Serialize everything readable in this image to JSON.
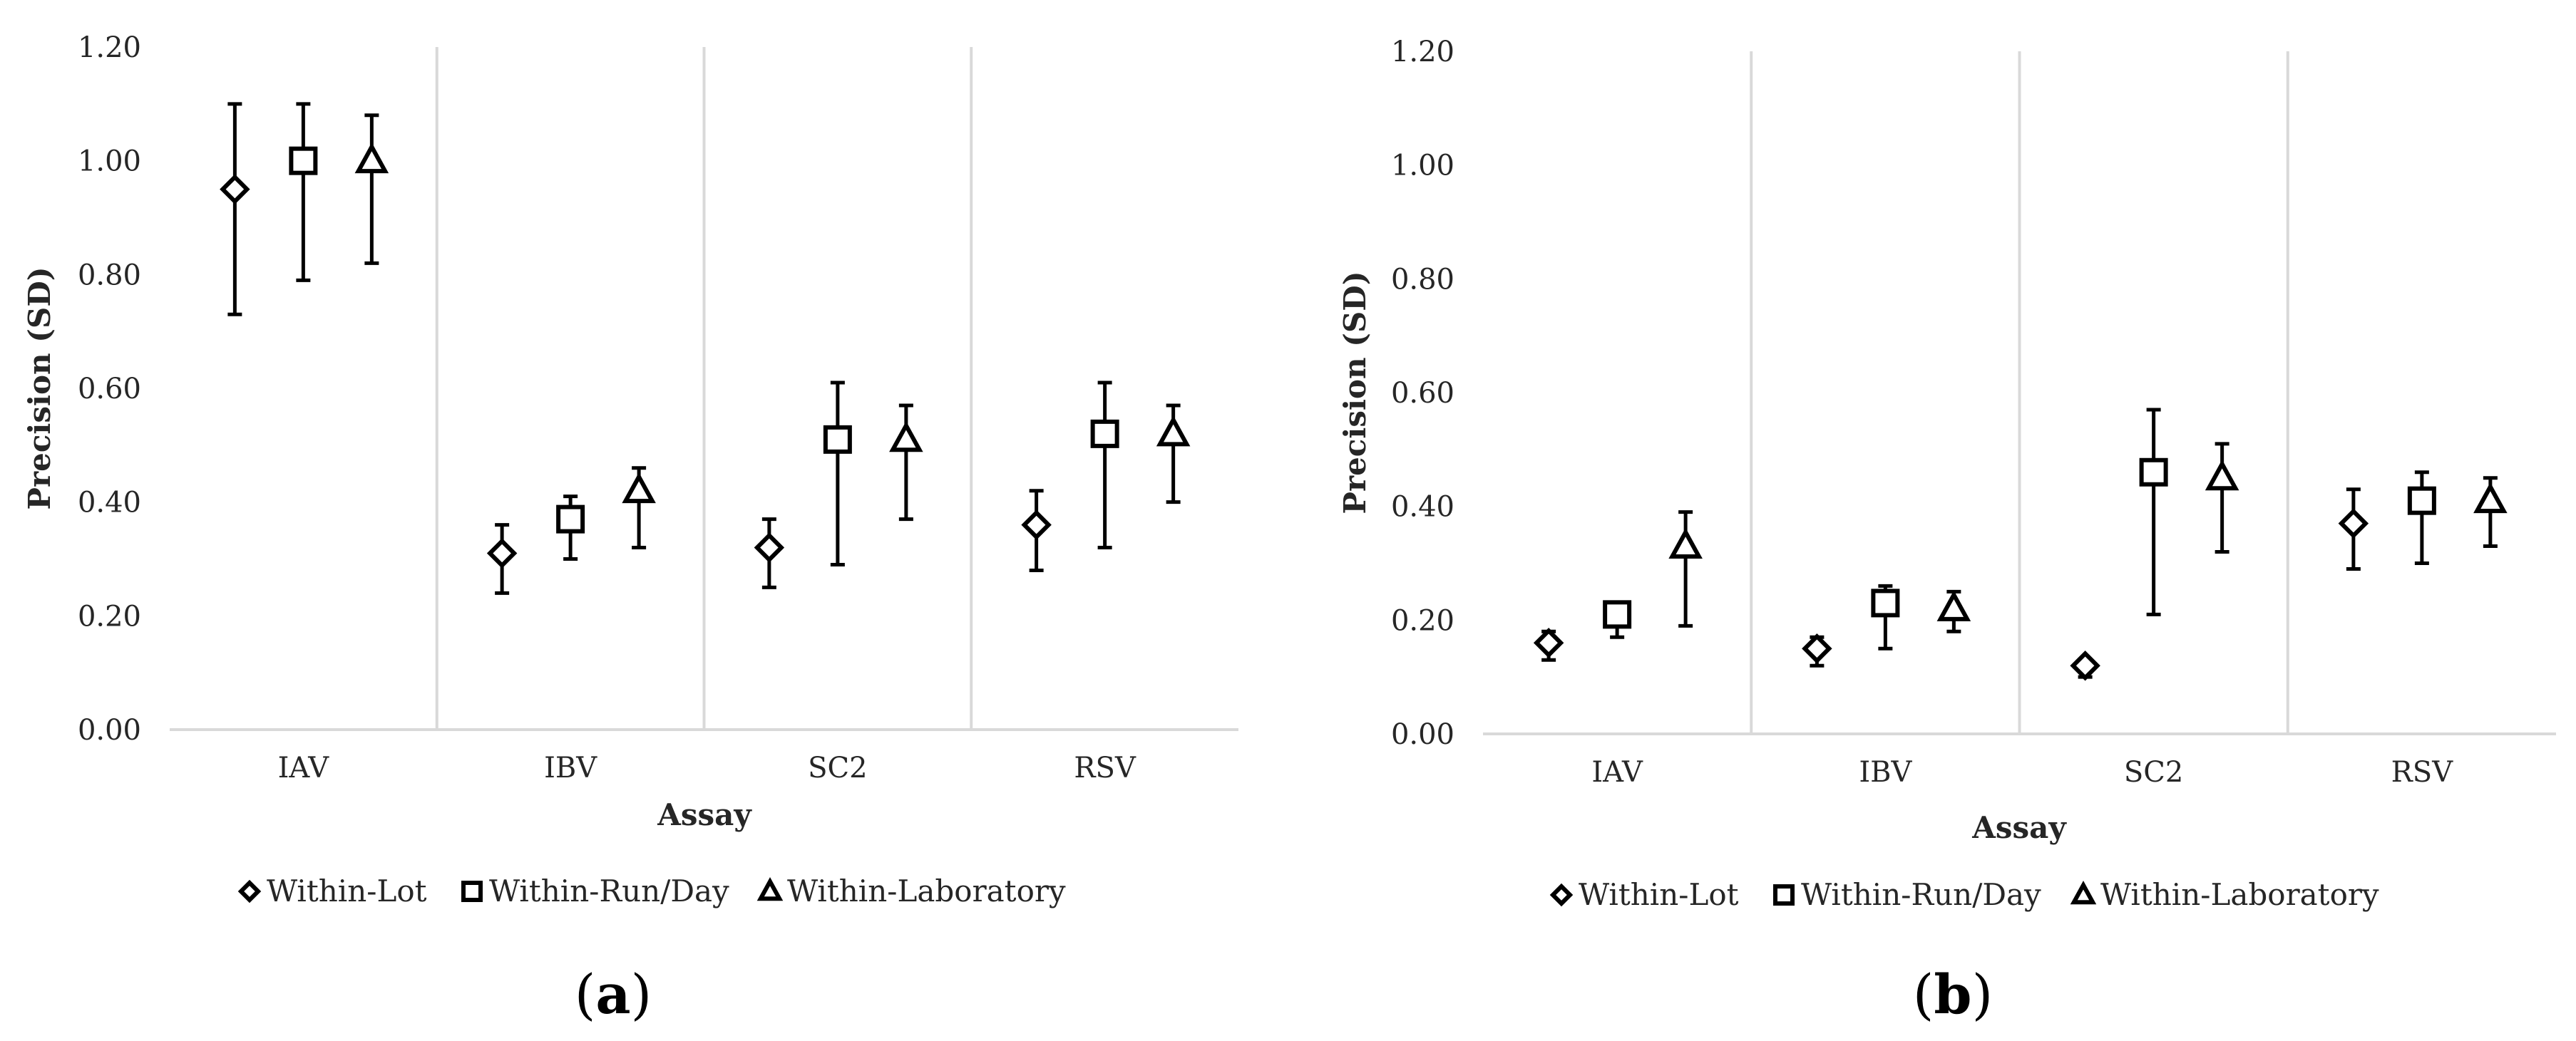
{
  "chart_data": [
    {
      "type": "scatter",
      "panel": "a",
      "ylabel": "Precision (SD)",
      "xlabel": "Assay",
      "ylim": [
        0,
        1.2
      ],
      "yticks": [
        "0.00",
        "0.20",
        "0.40",
        "0.60",
        "0.80",
        "1.00",
        "1.20"
      ],
      "categories": [
        "IAV",
        "IBV",
        "SC2",
        "RSV"
      ],
      "series": [
        {
          "name": "Within-Lot",
          "marker": "diamond",
          "values": [
            0.95,
            0.31,
            0.32,
            0.36
          ],
          "err_low": [
            0.73,
            0.24,
            0.25,
            0.28
          ],
          "err_high": [
            1.1,
            0.36,
            0.37,
            0.42
          ]
        },
        {
          "name": "Within-Run/Day",
          "marker": "square",
          "values": [
            1.0,
            0.37,
            0.51,
            0.52
          ],
          "err_low": [
            0.79,
            0.3,
            0.29,
            0.32
          ],
          "err_high": [
            1.1,
            0.41,
            0.61,
            0.61
          ]
        },
        {
          "name": "Within-Laboratory",
          "marker": "triangle",
          "values": [
            1.0,
            0.42,
            0.51,
            0.52
          ],
          "err_low": [
            0.82,
            0.32,
            0.37,
            0.4
          ],
          "err_high": [
            1.08,
            0.46,
            0.57,
            0.57
          ]
        }
      ],
      "legend": "bottom",
      "gridlines": false
    },
    {
      "type": "scatter",
      "panel": "b",
      "ylabel": "Precision (SD)",
      "xlabel": "Assay",
      "ylim": [
        0,
        1.2
      ],
      "yticks": [
        "0.00",
        "0.20",
        "0.40",
        "0.60",
        "0.80",
        "1.00",
        "1.20"
      ],
      "categories": [
        "IAV",
        "IBV",
        "SC2",
        "RSV"
      ],
      "series": [
        {
          "name": "Within-Lot",
          "marker": "diamond",
          "values": [
            0.16,
            0.15,
            0.12,
            0.37
          ],
          "err_low": [
            0.13,
            0.12,
            0.1,
            0.29
          ],
          "err_high": [
            0.18,
            0.17,
            0.12,
            0.43
          ]
        },
        {
          "name": "Within-Run/Day",
          "marker": "square",
          "values": [
            0.21,
            0.23,
            0.46,
            0.41
          ],
          "err_low": [
            0.17,
            0.15,
            0.21,
            0.3
          ],
          "err_high": [
            0.21,
            0.26,
            0.57,
            0.46
          ]
        },
        {
          "name": "Within-Laboratory",
          "marker": "triangle",
          "values": [
            0.33,
            0.22,
            0.45,
            0.41
          ],
          "err_low": [
            0.19,
            0.18,
            0.32,
            0.33
          ],
          "err_high": [
            0.39,
            0.25,
            0.51,
            0.45
          ]
        }
      ],
      "legend": "bottom",
      "gridlines": false
    }
  ],
  "panel_labels": [
    {
      "open": "(",
      "letter": "a",
      "close": ")"
    },
    {
      "open": "(",
      "letter": "b",
      "close": ")"
    }
  ]
}
